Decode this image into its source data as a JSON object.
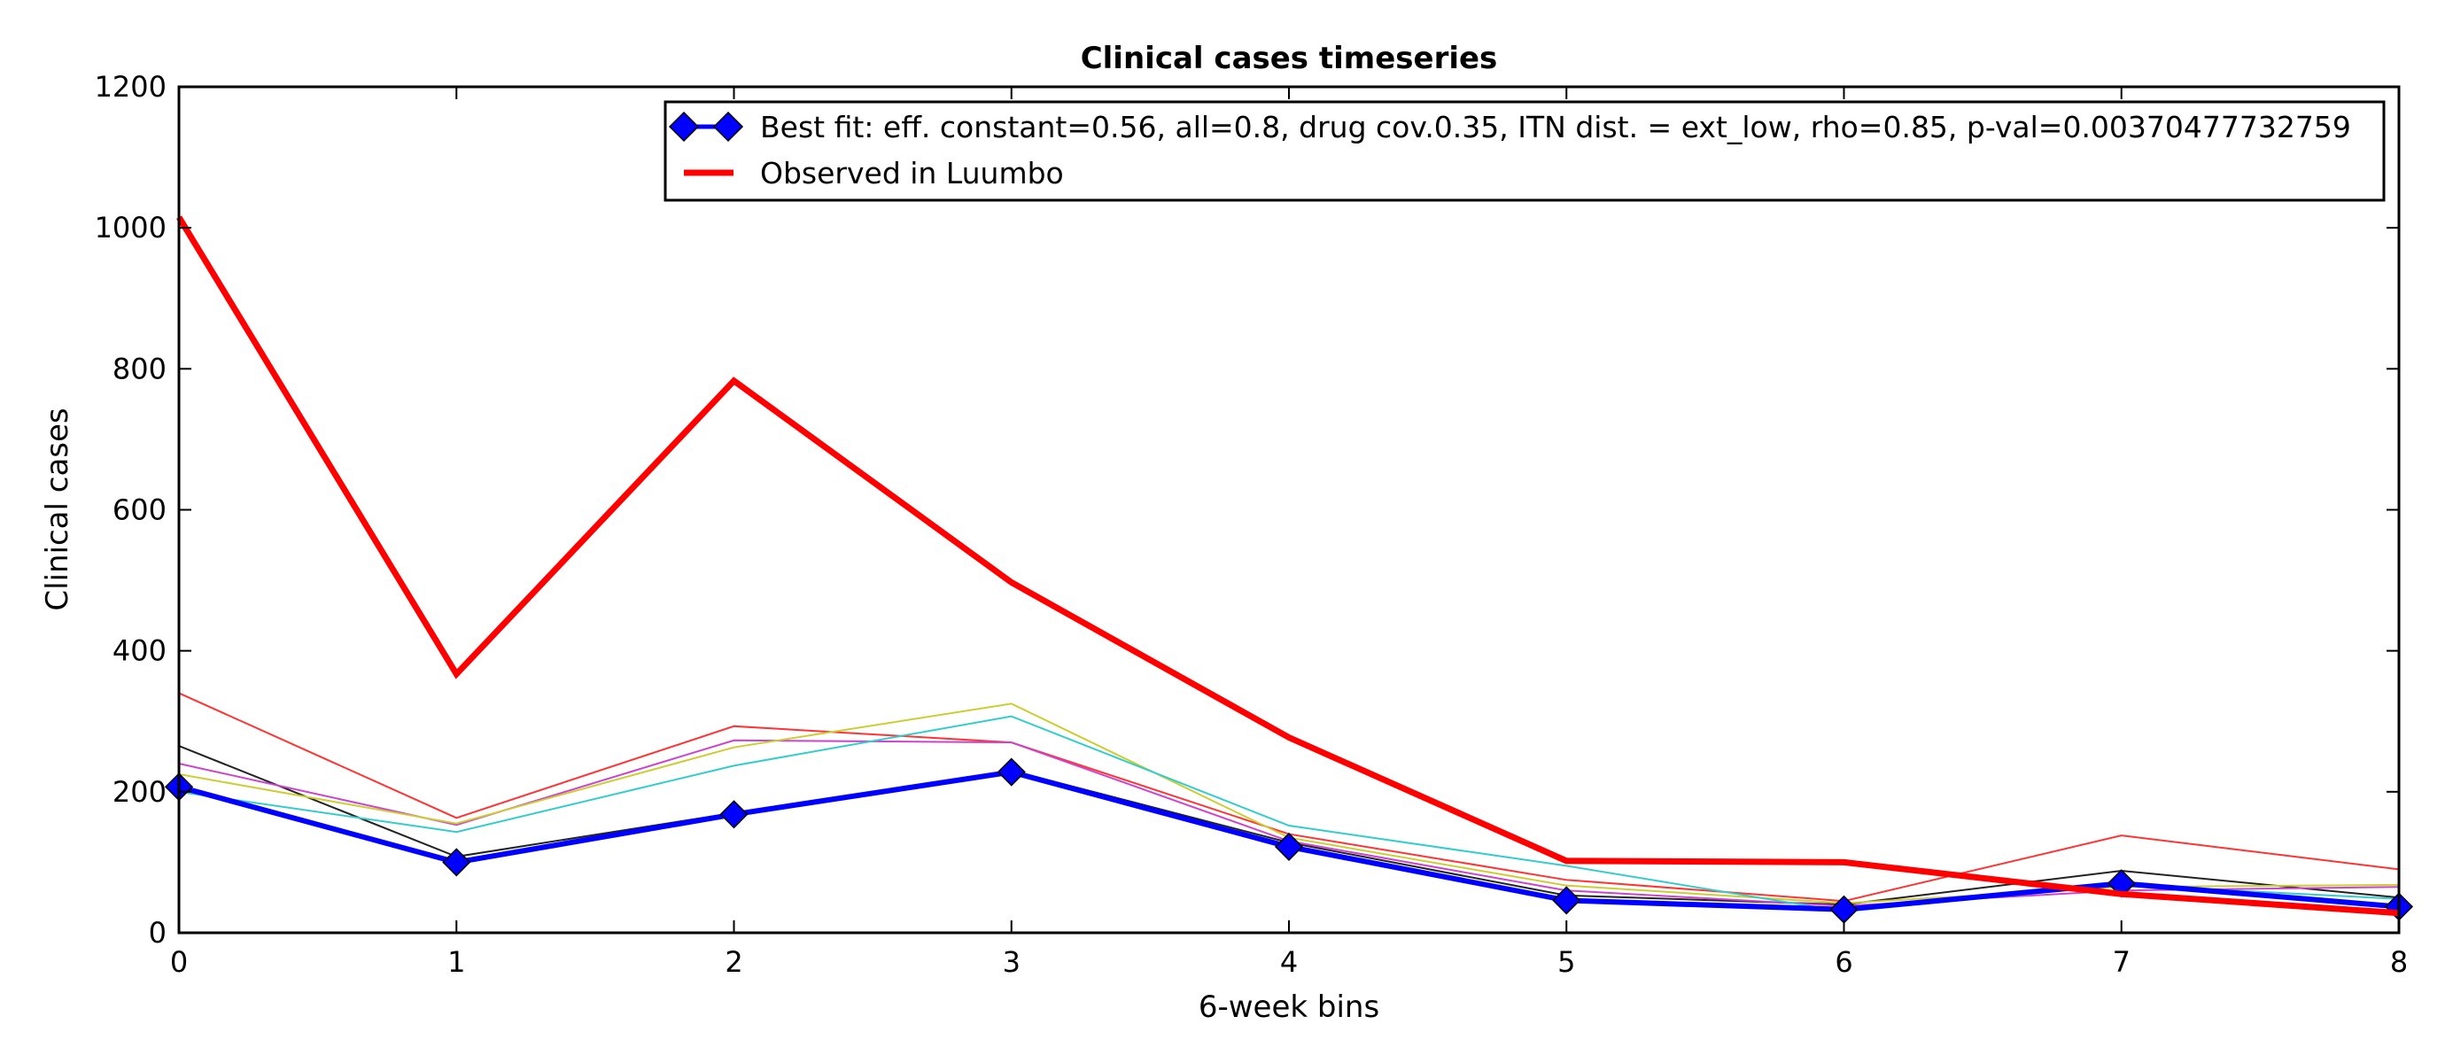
{
  "chart_data": {
    "type": "line",
    "title": "Clinical cases timeseries",
    "xlabel": "6-week bins",
    "ylabel": "Clinical cases",
    "xlim": [
      0,
      8
    ],
    "ylim": [
      0,
      1200
    ],
    "xticks": [
      0,
      1,
      2,
      3,
      4,
      5,
      6,
      7,
      8
    ],
    "yticks": [
      0,
      200,
      400,
      600,
      800,
      1000,
      1200
    ],
    "grid": false,
    "legend_position": "top-right",
    "x": [
      0,
      1,
      2,
      3,
      4,
      5,
      6,
      7,
      8
    ],
    "series": [
      {
        "name": "",
        "color": "#ff3333",
        "values": [
          340,
          163,
          293,
          270,
          140,
          75,
          45,
          138,
          90
        ]
      },
      {
        "name": "",
        "color": "#222222",
        "values": [
          265,
          108,
          170,
          230,
          128,
          53,
          40,
          88,
          50
        ]
      },
      {
        "name": "",
        "color": "#cc44cc",
        "values": [
          240,
          153,
          273,
          270,
          130,
          60,
          38,
          60,
          65
        ]
      },
      {
        "name": "",
        "color": "#cccc33",
        "values": [
          225,
          155,
          263,
          325,
          135,
          67,
          42,
          65,
          68
        ]
      },
      {
        "name": "",
        "color": "#33cccc",
        "values": [
          200,
          143,
          237,
          307,
          152,
          95,
          30,
          68,
          48
        ]
      },
      {
        "name": "Best fit: eff. constant=0.56, all=0.8, drug cov.0.35, ITN dist. = ext_low, rho=0.85, p-val=0.00370477732759",
        "color": "#0000ff",
        "marker": "diamond",
        "values": [
          207,
          100,
          168,
          228,
          122,
          46,
          33,
          70,
          37
        ]
      },
      {
        "name": "Observed in Luumbo",
        "color": "#ff0000",
        "values": [
          1015,
          367,
          783,
          497,
          277,
          102,
          100,
          55,
          28
        ]
      }
    ]
  },
  "legend": {
    "best_fit": "Best fit: eff. constant=0.56, all=0.8, drug cov.0.35, ITN dist. = ext_low, rho=0.85, p-val=0.00370477732759",
    "observed": "Observed in Luumbo"
  }
}
